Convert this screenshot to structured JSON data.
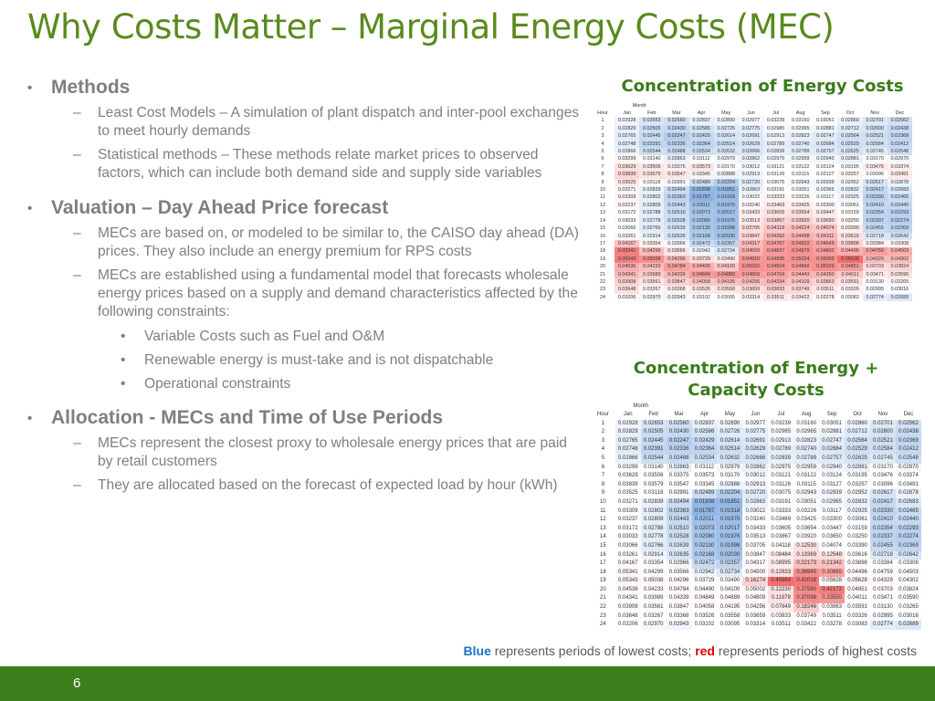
{
  "title": "Why Costs Matter – Marginal Energy Costs (MEC)",
  "bullets": {
    "methods": {
      "heading": "Methods",
      "items": [
        "Least Cost Models – A simulation of plant dispatch and inter-pool exchanges to meet hourly demands",
        "Statistical methods – These methods relate market prices to observed factors, which can include both demand side and supply side variables"
      ]
    },
    "valuation": {
      "heading": "Valuation – Day Ahead Price forecast",
      "items": [
        "MECs are based on, or modeled to be similar to, the CAISO day ahead (DA) prices. They also include an energy premium for RPS costs",
        "MECs are established using a fundamental model that forecasts wholesale energy prices based on a supply and demand characteristics affected by the following constraints:"
      ],
      "subitems": [
        "Variable Costs such as Fuel and O&M",
        "Renewable energy is must-take and is not dispatchable",
        "Operational constraints"
      ]
    },
    "allocation": {
      "heading": "Allocation - MECs and Time of Use Periods",
      "items": [
        "MECs represent the closest proxy to wholesale energy prices that are paid by retail customers",
        "They are allocated based on the forecast of expected load by hour (kWh)"
      ]
    }
  },
  "caption": {
    "blue_word": "Blue",
    "blue_rest": " represents periods of lowest costs; ",
    "red_word": "red",
    "red_rest": " represents periods of highest costs"
  },
  "footer": {
    "page_number": "6"
  },
  "colors": {
    "title": "#5a8a1d",
    "chart_title": "#3a7c1a",
    "footer": "#3c7f1c",
    "low_cost": "#8eb4e3",
    "high_cost": "#f47b7b"
  },
  "chart_data": [
    {
      "type": "heatmap",
      "title": "Concentration of Energy Costs",
      "col_group_label": "Month",
      "row_header": "Hour",
      "columns": [
        "Jan",
        "Feb",
        "Mar",
        "Apr",
        "May",
        "Jun",
        "Jul",
        "Aug",
        "Sep",
        "Oct",
        "Nov",
        "Dec"
      ],
      "rows": [
        "1",
        "2",
        "3",
        "4",
        "5",
        "6",
        "7",
        "8",
        "9",
        "10",
        "11",
        "12",
        "13",
        "14",
        "15",
        "16",
        "17",
        "18",
        "19",
        "20",
        "21",
        "22",
        "23",
        "24"
      ],
      "values": [
        [
          "0.02928",
          "0.02653",
          "0.02560",
          "0.02837",
          "0.02890",
          "0.02977",
          "0.03239",
          "0.03160",
          "0.03051",
          "0.02860",
          "0.02701",
          "0.02562"
        ],
        [
          "0.02829",
          "0.02505",
          "0.02430",
          "0.02586",
          "0.02726",
          "0.02775",
          "0.02985",
          "0.02965",
          "0.02881",
          "0.02712",
          "0.02600",
          "0.02438"
        ],
        [
          "0.02765",
          "0.02445",
          "0.02247",
          "0.02429",
          "0.02614",
          "0.02691",
          "0.02913",
          "0.02823",
          "0.02747",
          "0.02564",
          "0.02521",
          "0.02369"
        ],
        [
          "0.02748",
          "0.02391",
          "0.02336",
          "0.02364",
          "0.02514",
          "0.02629",
          "0.02789",
          "0.02740",
          "0.02684",
          "0.02529",
          "0.02584",
          "0.02412"
        ],
        [
          "0.02866",
          "0.02544",
          "0.02488",
          "0.02534",
          "0.02632",
          "0.02666",
          "0.02839",
          "0.02789",
          "0.02757",
          "0.02625",
          "0.02745",
          "0.02548"
        ],
        [
          "0.03299",
          "0.03140",
          "0.02863",
          "0.03112",
          "0.02979",
          "0.02862",
          "0.02975",
          "0.02959",
          "0.02940",
          "0.02881",
          "0.03170",
          "0.02970"
        ],
        [
          "0.03629",
          "0.03506",
          "0.03375",
          "0.03573",
          "0.03170",
          "0.03012",
          "0.03121",
          "0.03122",
          "0.03124",
          "0.03195",
          "0.03476",
          "0.03374"
        ],
        [
          "0.03839",
          "0.03579",
          "0.03547",
          "0.03345",
          "0.02888",
          "0.02913",
          "0.03126",
          "0.03115",
          "0.03127",
          "0.03257",
          "0.03096",
          "0.03491"
        ],
        [
          "0.03525",
          "0.03118",
          "0.02991",
          "0.02489",
          "0.02204",
          "0.02720",
          "0.03075",
          "0.02943",
          "0.02939",
          "0.02952",
          "0.02617",
          "0.02878"
        ],
        [
          "0.03271",
          "0.02839",
          "0.02494",
          "0.01838",
          "0.01851",
          "0.02863",
          "0.03191",
          "0.03051",
          "0.02965",
          "0.02832",
          "0.02417",
          "0.02683"
        ],
        [
          "0.03309",
          "0.02802",
          "0.02363",
          "0.01787",
          "0.01918",
          "0.03022",
          "0.03333",
          "0.03226",
          "0.03117",
          "0.02925",
          "0.02330",
          "0.02465"
        ],
        [
          "0.03237",
          "0.02809",
          "0.02443",
          "0.02011",
          "0.01970",
          "0.03240",
          "0.03469",
          "0.03425",
          "0.03300",
          "0.03061",
          "0.02410",
          "0.02440"
        ],
        [
          "0.03172",
          "0.02788",
          "0.02510",
          "0.02073",
          "0.02017",
          "0.03433",
          "0.03605",
          "0.03654",
          "0.03447",
          "0.03159",
          "0.02354",
          "0.02293"
        ],
        [
          "0.03033",
          "0.02778",
          "0.02528",
          "0.02080",
          "0.01976",
          "0.03513",
          "0.03867",
          "0.03920",
          "0.03650",
          "0.03250",
          "0.02337",
          "0.02274"
        ],
        [
          "0.03066",
          "0.02766",
          "0.02639",
          "0.02130",
          "0.01998",
          "0.03705",
          "0.04118",
          "0.04224",
          "0.04074",
          "0.03390",
          "0.02455",
          "0.02369"
        ],
        [
          "0.03261",
          "0.02914",
          "0.02635",
          "0.02168",
          "0.02030",
          "0.03847",
          "0.04392",
          "0.04498",
          "0.04311",
          "0.03616",
          "0.02718",
          "0.02642"
        ],
        [
          "0.04167",
          "0.03354",
          "0.02966",
          "0.02472",
          "0.02357",
          "0.04317",
          "0.04767",
          "0.04922",
          "0.04649",
          "0.03898",
          "0.03384",
          "0.03308"
        ],
        [
          "0.05341",
          "0.04299",
          "0.03566",
          "0.02942",
          "0.02734",
          "0.04500",
          "0.04837",
          "0.04979",
          "0.04802",
          "0.04496",
          "0.04759",
          "0.04503"
        ],
        [
          "0.05343",
          "0.05038",
          "0.04296",
          "0.03729",
          "0.03490",
          "0.04910",
          "0.04935",
          "0.05024",
          "0.05009",
          "0.05628",
          "0.04329",
          "0.04302"
        ],
        [
          "0.04536",
          "0.04233",
          "0.04784",
          "0.04490",
          "0.04100",
          "0.05002",
          "0.04924",
          "0.04842",
          "0.05029",
          "0.04851",
          "0.03703",
          "0.03824"
        ],
        [
          "0.04341",
          "0.03989",
          "0.04339",
          "0.04849",
          "0.04889",
          "0.04809",
          "0.04704",
          "0.04443",
          "0.04350",
          "0.04011",
          "0.03471",
          "0.03590"
        ],
        [
          "0.03908",
          "0.03561",
          "0.03847",
          "0.04058",
          "0.04195",
          "0.04256",
          "0.04334",
          "0.04109",
          "0.03863",
          "0.03591",
          "0.03130",
          "0.03265"
        ],
        [
          "0.03648",
          "0.03267",
          "0.03368",
          "0.03526",
          "0.03558",
          "0.03659",
          "0.03833",
          "0.03749",
          "0.03511",
          "0.03326",
          "0.02995",
          "0.03016"
        ],
        [
          "0.03206",
          "0.02970",
          "0.02943",
          "0.03102",
          "0.03095",
          "0.03314",
          "0.03511",
          "0.03422",
          "0.03278",
          "0.03083",
          "0.02774",
          "0.02689"
        ]
      ]
    },
    {
      "type": "heatmap",
      "title": "Concentration of Energy + Capacity Costs",
      "col_group_label": "Month",
      "row_header": "Hour",
      "columns": [
        "Jan",
        "Feb",
        "Mar",
        "Apr",
        "May",
        "Jun",
        "Jul",
        "Aug",
        "Sep",
        "Oct",
        "Nov",
        "Dec"
      ],
      "rows": [
        "1",
        "2",
        "3",
        "4",
        "5",
        "6",
        "7",
        "8",
        "9",
        "10",
        "11",
        "12",
        "13",
        "14",
        "15",
        "16",
        "17",
        "18",
        "19",
        "20",
        "21",
        "22",
        "23",
        "24"
      ],
      "values": [
        [
          "0.02928",
          "0.02653",
          "0.02560",
          "0.02837",
          "0.02890",
          "0.02977",
          "0.03239",
          "0.03160",
          "0.03051",
          "0.02860",
          "0.02701",
          "0.02562"
        ],
        [
          "0.02829",
          "0.02505",
          "0.02430",
          "0.02586",
          "0.02726",
          "0.02775",
          "0.02985",
          "0.02965",
          "0.02881",
          "0.02712",
          "0.02600",
          "0.02438"
        ],
        [
          "0.02765",
          "0.02445",
          "0.02247",
          "0.02429",
          "0.02614",
          "0.02691",
          "0.02913",
          "0.02823",
          "0.02747",
          "0.02564",
          "0.02521",
          "0.02369"
        ],
        [
          "0.02748",
          "0.02391",
          "0.02336",
          "0.02364",
          "0.02514",
          "0.02629",
          "0.02789",
          "0.02740",
          "0.02684",
          "0.02529",
          "0.02584",
          "0.02412"
        ],
        [
          "0.02866",
          "0.02544",
          "0.02488",
          "0.02534",
          "0.02632",
          "0.02666",
          "0.02839",
          "0.02789",
          "0.02757",
          "0.02625",
          "0.02745",
          "0.02548"
        ],
        [
          "0.03299",
          "0.03140",
          "0.02863",
          "0.03112",
          "0.02979",
          "0.02862",
          "0.02975",
          "0.02959",
          "0.02940",
          "0.02881",
          "0.03170",
          "0.02970"
        ],
        [
          "0.03629",
          "0.03506",
          "0.03375",
          "0.03573",
          "0.03170",
          "0.03012",
          "0.03121",
          "0.03122",
          "0.03124",
          "0.03195",
          "0.03476",
          "0.03374"
        ],
        [
          "0.03839",
          "0.03579",
          "0.03547",
          "0.03345",
          "0.02888",
          "0.02913",
          "0.03126",
          "0.03115",
          "0.03127",
          "0.03257",
          "0.03096",
          "0.03491"
        ],
        [
          "0.03525",
          "0.03118",
          "0.02991",
          "0.02489",
          "0.02204",
          "0.02720",
          "0.03075",
          "0.02943",
          "0.02939",
          "0.02952",
          "0.02617",
          "0.02878"
        ],
        [
          "0.03271",
          "0.02839",
          "0.02494",
          "0.01838",
          "0.01851",
          "0.02863",
          "0.03191",
          "0.03051",
          "0.02965",
          "0.02832",
          "0.02417",
          "0.02683"
        ],
        [
          "0.03309",
          "0.02802",
          "0.02363",
          "0.01787",
          "0.01918",
          "0.03022",
          "0.03333",
          "0.03226",
          "0.03117",
          "0.02925",
          "0.02330",
          "0.02465"
        ],
        [
          "0.03237",
          "0.02809",
          "0.02443",
          "0.02011",
          "0.01970",
          "0.03240",
          "0.03469",
          "0.03425",
          "0.03300",
          "0.03061",
          "0.02410",
          "0.02440"
        ],
        [
          "0.03172",
          "0.02788",
          "0.02510",
          "0.02073",
          "0.02017",
          "0.03433",
          "0.03605",
          "0.03654",
          "0.03447",
          "0.03159",
          "0.02354",
          "0.02293"
        ],
        [
          "0.03033",
          "0.02778",
          "0.02528",
          "0.02080",
          "0.01976",
          "0.03513",
          "0.03867",
          "0.03920",
          "0.03650",
          "0.03250",
          "0.02337",
          "0.02274"
        ],
        [
          "0.03066",
          "0.02766",
          "0.02639",
          "0.02130",
          "0.01998",
          "0.03705",
          "0.04118",
          "0.12530",
          "0.04074",
          "0.03390",
          "0.02455",
          "0.02369"
        ],
        [
          "0.03261",
          "0.02914",
          "0.02635",
          "0.02168",
          "0.02030",
          "0.03847",
          "0.08484",
          "0.13369",
          "0.12548",
          "0.03616",
          "0.02718",
          "0.02642"
        ],
        [
          "0.04167",
          "0.03354",
          "0.02966",
          "0.02472",
          "0.02357",
          "0.04317",
          "0.08995",
          "0.22173",
          "0.21342",
          "0.03898",
          "0.03384",
          "0.03308"
        ],
        [
          "0.05341",
          "0.04299",
          "0.03566",
          "0.02942",
          "0.02734",
          "0.04500",
          "0.12833",
          "0.36945",
          "0.30865",
          "0.04496",
          "0.04759",
          "0.04503"
        ],
        [
          "0.05343",
          "0.05038",
          "0.04296",
          "0.03729",
          "0.03490",
          "0.16274",
          "0.45984",
          "0.42018",
          "0.05628",
          "0.05628",
          "0.04329",
          "0.04302"
        ],
        [
          "0.04536",
          "0.04233",
          "0.04784",
          "0.04490",
          "0.04100",
          "0.05002",
          "0.12230",
          "0.37580",
          "0.42172",
          "0.04851",
          "0.03703",
          "0.03824"
        ],
        [
          "0.04341",
          "0.03989",
          "0.04339",
          "0.04849",
          "0.04889",
          "0.04809",
          "0.11979",
          "0.37098",
          "0.33550",
          "0.04011",
          "0.03471",
          "0.03590"
        ],
        [
          "0.03908",
          "0.03561",
          "0.03847",
          "0.04058",
          "0.04195",
          "0.04256",
          "0.07849",
          "0.18246",
          "0.03863",
          "0.03591",
          "0.03130",
          "0.03265"
        ],
        [
          "0.03648",
          "0.03267",
          "0.03368",
          "0.03526",
          "0.03558",
          "0.03659",
          "0.03833",
          "0.03749",
          "0.03511",
          "0.03326",
          "0.02995",
          "0.03016"
        ],
        [
          "0.03206",
          "0.02970",
          "0.02943",
          "0.03102",
          "0.03095",
          "0.03314",
          "0.03511",
          "0.03422",
          "0.03278",
          "0.03083",
          "0.02774",
          "0.02689"
        ]
      ]
    }
  ]
}
